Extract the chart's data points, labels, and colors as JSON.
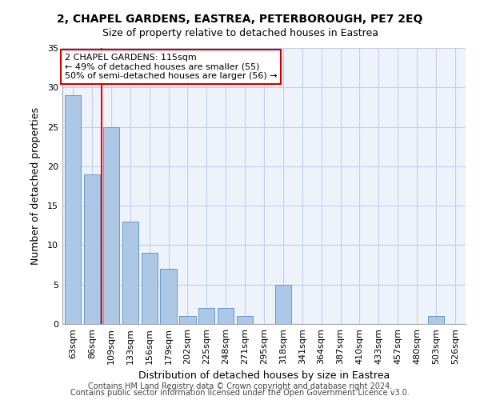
{
  "title1": "2, CHAPEL GARDENS, EASTREA, PETERBOROUGH, PE7 2EQ",
  "title2": "Size of property relative to detached houses in Eastrea",
  "xlabel": "Distribution of detached houses by size in Eastrea",
  "ylabel": "Number of detached properties",
  "categories": [
    "63sqm",
    "86sqm",
    "109sqm",
    "133sqm",
    "156sqm",
    "179sqm",
    "202sqm",
    "225sqm",
    "248sqm",
    "271sqm",
    "295sqm",
    "318sqm",
    "341sqm",
    "364sqm",
    "387sqm",
    "410sqm",
    "433sqm",
    "457sqm",
    "480sqm",
    "503sqm",
    "526sqm"
  ],
  "values": [
    29,
    19,
    25,
    13,
    9,
    7,
    1,
    2,
    2,
    1,
    0,
    5,
    0,
    0,
    0,
    0,
    0,
    0,
    0,
    1,
    0
  ],
  "bar_color": "#adc8e6",
  "bar_edge_color": "#6699cc",
  "red_line_x": 1.5,
  "annotation_text": "2 CHAPEL GARDENS: 115sqm\n← 49% of detached houses are smaller (55)\n50% of semi-detached houses are larger (56) →",
  "annotation_box_color": "#ffffff",
  "annotation_edge_color": "#cc0000",
  "ylim": [
    0,
    35
  ],
  "yticks": [
    0,
    5,
    10,
    15,
    20,
    25,
    30,
    35
  ],
  "footer1": "Contains HM Land Registry data © Crown copyright and database right 2024.",
  "footer2": "Contains public sector information licensed under the Open Government Licence v3.0.",
  "background_color": "#eef2fb",
  "grid_color": "#c5cfe8",
  "title1_fontsize": 10,
  "title2_fontsize": 9,
  "annot_fontsize": 8,
  "tick_fontsize": 8,
  "ylabel_fontsize": 9,
  "xlabel_fontsize": 9,
  "footer_fontsize": 7
}
